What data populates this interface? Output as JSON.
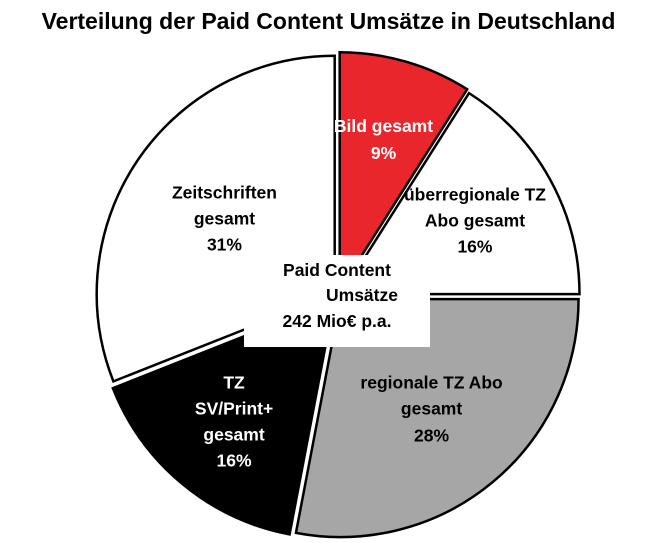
{
  "chart_data": {
    "type": "pie",
    "title": "Verteilung der Paid Content Umsätze in Deutschland",
    "center_label": [
      "Paid Content",
      "Umsätze",
      "242 Mio€ p.a."
    ],
    "slices": [
      {
        "label_lines": [
          "Bild gesamt",
          "9%"
        ],
        "value": 9,
        "color": "#e8262b",
        "text_color": "#ffffff"
      },
      {
        "label_lines": [
          "überregionale TZ",
          "Abo gesamt",
          "16%"
        ],
        "value": 16,
        "color": "#ffffff",
        "text_color": "#000000"
      },
      {
        "label_lines": [
          "regionale TZ Abo",
          "gesamt",
          "28%"
        ],
        "value": 28,
        "color": "#a6a6a6",
        "text_color": "#000000"
      },
      {
        "label_lines": [
          "TZ",
          "SV/Print+",
          "gesamt",
          "16%"
        ],
        "value": 16,
        "color": "#000000",
        "text_color": "#ffffff"
      },
      {
        "label_lines": [
          "Zeitschriften",
          "gesamt",
          "31%"
        ],
        "value": 31,
        "color": "#ffffff",
        "text_color": "#000000"
      }
    ]
  }
}
